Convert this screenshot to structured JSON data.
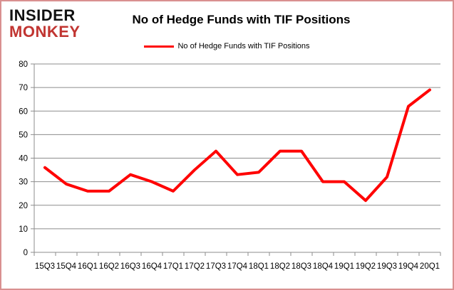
{
  "logo": {
    "line1": "INSIDER",
    "line2": "MONKEY"
  },
  "header": {
    "title": "No of Hedge Funds with TIF Positions"
  },
  "legend": {
    "label": "No of Hedge Funds with TIF Positions"
  },
  "colors": {
    "series": "#ff0000",
    "grid": "#8c8c8c",
    "axis": "#8c8c8c",
    "tick_text": "#000000",
    "logo_red": "#c13531",
    "logo_black": "#111111",
    "frame_border": "#d99090"
  },
  "chart_data": {
    "type": "line",
    "title": "No of Hedge Funds with TIF Positions",
    "legend_entries": [
      "No of Hedge Funds with TIF Positions"
    ],
    "legend_position": "top",
    "categories": [
      "15Q3",
      "15Q4",
      "16Q1",
      "16Q2",
      "16Q3",
      "16Q4",
      "17Q1",
      "17Q2",
      "17Q3",
      "17Q4",
      "18Q1",
      "18Q2",
      "18Q3",
      "18Q4",
      "19Q1",
      "19Q2",
      "19Q3",
      "19Q4",
      "20Q1"
    ],
    "series": [
      {
        "name": "No of Hedge Funds with TIF Positions",
        "color": "#ff0000",
        "values": [
          36,
          29,
          26,
          26,
          33,
          30,
          26,
          35,
          43,
          33,
          34,
          43,
          43,
          30,
          30,
          22,
          32,
          62,
          69
        ]
      }
    ],
    "xlabel": "",
    "ylabel": "",
    "ylim": [
      0,
      80
    ],
    "yticks": [
      0,
      10,
      20,
      30,
      40,
      50,
      60,
      70,
      80
    ],
    "grid": "horizontal-only",
    "markers": false
  }
}
